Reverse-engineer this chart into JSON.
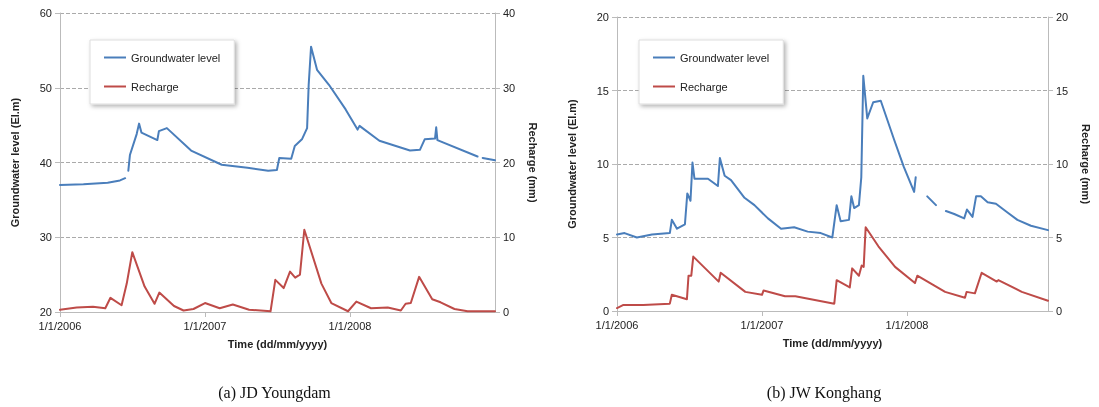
{
  "chart_data": [
    {
      "type": "line",
      "title": "(a) JD Youngdam",
      "xlabel": "Time (dd/mm/yyyy)",
      "ylabel": "Groundwater level (El.m)",
      "y2label": "Recharge (mm)",
      "xlim": [
        "2006-01-01",
        "2008-12-31"
      ],
      "xticks": [
        {
          "value": "2006-01-01",
          "label": "1/1/2006"
        },
        {
          "value": "2007-01-01",
          "label": "1/1/2007"
        },
        {
          "value": "2008-01-01",
          "label": "1/1/2008"
        }
      ],
      "ylim": [
        20,
        60
      ],
      "yticks": [
        20,
        30,
        40,
        50,
        60
      ],
      "y2lim": [
        0,
        40
      ],
      "y2ticks": [
        0,
        10,
        20,
        30,
        40
      ],
      "grid": "y",
      "legend": "top left",
      "marker": "none",
      "line_style": "solid",
      "series": [
        {
          "name": "Groundwater level",
          "color": "#4a7ebb",
          "x": [
            "2006-01-01",
            "2006-03-01",
            "2006-05-01",
            "2006-06-01",
            "2006-06-14",
            "2006-06-18",
            "2006-06-22",
            "2006-06-26",
            "2006-07-13",
            "2006-07-19",
            "2006-07-25",
            "2006-09-03",
            "2006-09-07",
            "2006-09-27",
            "2006-11-27",
            "2007-02-12",
            "2007-04-18",
            "2007-06-09",
            "2007-07-01",
            "2007-07-07",
            "2007-08-06",
            "2007-08-15",
            "2007-09-02",
            "2007-09-15",
            "2007-09-19",
            "2007-09-25",
            "2007-10-10",
            "2007-11-09",
            "2007-12-21",
            "2008-01-20",
            "2008-01-25",
            "2008-03-15",
            "2008-05-31",
            "2008-06-25",
            "2008-07-07",
            "2008-08-02",
            "2008-08-05",
            "2008-08-08",
            "2008-11-17",
            "2008-11-24",
            "2008-11-30",
            "2008-12-31"
          ],
          "values": [
            37.0,
            37.1,
            37.3,
            37.6,
            37.9,
            null,
            38.9,
            41.0,
            43.8,
            45.2,
            44.0,
            43.0,
            44.2,
            44.6,
            41.6,
            39.7,
            39.3,
            38.9,
            39.0,
            40.6,
            40.5,
            42.2,
            43.1,
            44.6,
            50.4,
            55.5,
            52.4,
            50.4,
            47.1,
            44.4,
            44.9,
            42.9,
            41.6,
            41.7,
            43.1,
            43.2,
            44.7,
            43.0,
            40.8,
            null,
            40.6,
            40.3
          ]
        },
        {
          "name": "Recharge",
          "color": "#be4b48",
          "axis": "y2",
          "x": [
            "2006-01-01",
            "2006-02-12",
            "2006-03-25",
            "2006-04-25",
            "2006-05-08",
            "2006-06-05",
            "2006-06-18",
            "2006-07-02",
            "2006-08-02",
            "2006-08-27",
            "2006-09-08",
            "2006-10-15",
            "2006-11-08",
            "2006-12-03",
            "2007-01-01",
            "2007-02-07",
            "2007-03-12",
            "2007-04-22",
            "2007-06-15",
            "2007-06-27",
            "2007-07-18",
            "2007-08-03",
            "2007-08-16",
            "2007-08-28",
            "2007-09-08",
            "2007-10-21",
            "2007-11-15",
            "2007-12-27",
            "2008-01-17",
            "2008-02-23",
            "2008-04-05",
            "2008-05-08",
            "2008-05-20",
            "2008-06-02",
            "2008-06-23",
            "2008-07-26",
            "2008-08-16",
            "2008-09-20",
            "2008-10-23",
            "2008-12-31"
          ],
          "values": [
            0.3,
            0.6,
            0.7,
            0.5,
            1.9,
            0.9,
            3.8,
            8.0,
            3.4,
            1.1,
            2.6,
            0.8,
            0.2,
            0.4,
            1.2,
            0.5,
            1.0,
            0.3,
            0.1,
            4.3,
            3.2,
            5.4,
            4.6,
            5.0,
            11.0,
            3.8,
            1.2,
            0.1,
            1.4,
            0.5,
            0.6,
            0.2,
            1.1,
            1.2,
            4.7,
            1.7,
            1.3,
            0.4,
            0.1,
            0.1
          ]
        }
      ]
    },
    {
      "type": "line",
      "title": "(b) JW Konghang",
      "xlabel": "Time (dd/mm/yyyy)",
      "ylabel": "Groundwater level (El.m)",
      "y2label": "Recharge (mm)",
      "xlim": [
        "2006-01-01",
        "2008-12-21"
      ],
      "xticks": [
        {
          "value": "2006-01-01",
          "label": "1/1/2006"
        },
        {
          "value": "2007-01-01",
          "label": "1/1/2007"
        },
        {
          "value": "2008-01-01",
          "label": "1/1/2008"
        }
      ],
      "ylim": [
        0,
        20
      ],
      "yticks": [
        0,
        5,
        10,
        15,
        20
      ],
      "y2lim": [
        0,
        20
      ],
      "y2ticks": [
        0,
        5,
        10,
        15,
        20
      ],
      "grid": "y",
      "legend": "top left",
      "marker": "none",
      "line_style": "solid",
      "series": [
        {
          "name": "Groundwater level",
          "color": "#4a7ebb",
          "x": [
            "2006-01-01",
            "2006-01-20",
            "2006-02-20",
            "2006-03-30",
            "2006-05-14",
            "2006-05-19",
            "2006-06-01",
            "2006-06-21",
            "2006-06-27",
            "2006-07-05",
            "2006-07-10",
            "2006-07-15",
            "2006-08-18",
            "2006-09-12",
            "2006-09-17",
            "2006-09-29",
            "2006-10-15",
            "2006-11-18",
            "2006-12-13",
            "2007-01-16",
            "2007-02-18",
            "2007-03-23",
            "2007-04-26",
            "2007-05-29",
            "2007-06-27",
            "2007-07-08",
            "2007-07-18",
            "2007-08-08",
            "2007-08-14",
            "2007-08-21",
            "2007-09-02",
            "2007-09-08",
            "2007-09-13",
            "2007-09-23",
            "2007-10-08",
            "2007-10-27",
            "2007-11-29",
            "2007-12-24",
            "2008-01-19",
            "2008-01-23",
            "2008-02-07",
            "2008-02-21",
            "2008-03-14",
            "2008-03-26",
            "2008-04-08",
            "2008-04-29",
            "2008-05-24",
            "2008-05-31",
            "2008-06-14",
            "2008-06-23",
            "2008-07-05",
            "2008-07-22",
            "2008-08-12",
            "2008-09-10",
            "2008-10-05",
            "2008-11-08",
            "2008-12-21"
          ],
          "values": [
            5.2,
            5.3,
            5.0,
            5.2,
            5.3,
            6.2,
            5.6,
            5.9,
            8.0,
            7.5,
            10.1,
            9.0,
            9.0,
            8.5,
            10.4,
            9.2,
            8.9,
            7.7,
            7.2,
            6.3,
            5.6,
            5.7,
            5.4,
            5.3,
            5.0,
            7.2,
            6.1,
            6.2,
            7.8,
            7.0,
            7.2,
            9.1,
            16.0,
            13.1,
            14.2,
            14.3,
            11.7,
            9.8,
            8.1,
            9.1,
            null,
            7.8,
            7.2,
            null,
            6.8,
            6.6,
            6.3,
            6.9,
            6.4,
            7.8,
            7.8,
            7.4,
            7.3,
            6.7,
            6.2,
            5.8,
            5.5
          ]
        },
        {
          "name": "Recharge",
          "color": "#be4b48",
          "axis": "y2",
          "x": [
            "2006-01-01",
            "2006-01-16",
            "2006-03-08",
            "2006-05-14",
            "2006-05-19",
            "2006-06-26",
            "2006-06-30",
            "2006-07-07",
            "2006-07-12",
            "2006-09-14",
            "2006-09-19",
            "2006-11-20",
            "2007-01-01",
            "2007-01-05",
            "2007-02-28",
            "2007-03-26",
            "2007-07-02",
            "2007-07-08",
            "2007-08-10",
            "2007-08-16",
            "2007-09-02",
            "2007-09-09",
            "2007-09-14",
            "2007-09-19",
            "2007-10-21",
            "2007-12-02",
            "2008-01-21",
            "2008-01-27",
            "2008-04-06",
            "2008-05-26",
            "2008-05-30",
            "2008-06-20",
            "2008-07-07",
            "2008-08-14",
            "2008-08-18",
            "2008-10-16",
            "2008-12-21"
          ],
          "values": [
            0.2,
            0.4,
            0.4,
            0.5,
            1.1,
            0.8,
            2.4,
            2.4,
            3.7,
            2.0,
            2.6,
            1.3,
            1.1,
            1.4,
            1.0,
            1.0,
            0.5,
            2.1,
            1.6,
            2.9,
            2.4,
            3.1,
            3.0,
            5.7,
            4.4,
            3.0,
            1.9,
            2.4,
            1.3,
            0.9,
            1.3,
            1.2,
            2.6,
            2.0,
            2.1,
            1.3,
            0.7
          ]
        }
      ]
    }
  ]
}
